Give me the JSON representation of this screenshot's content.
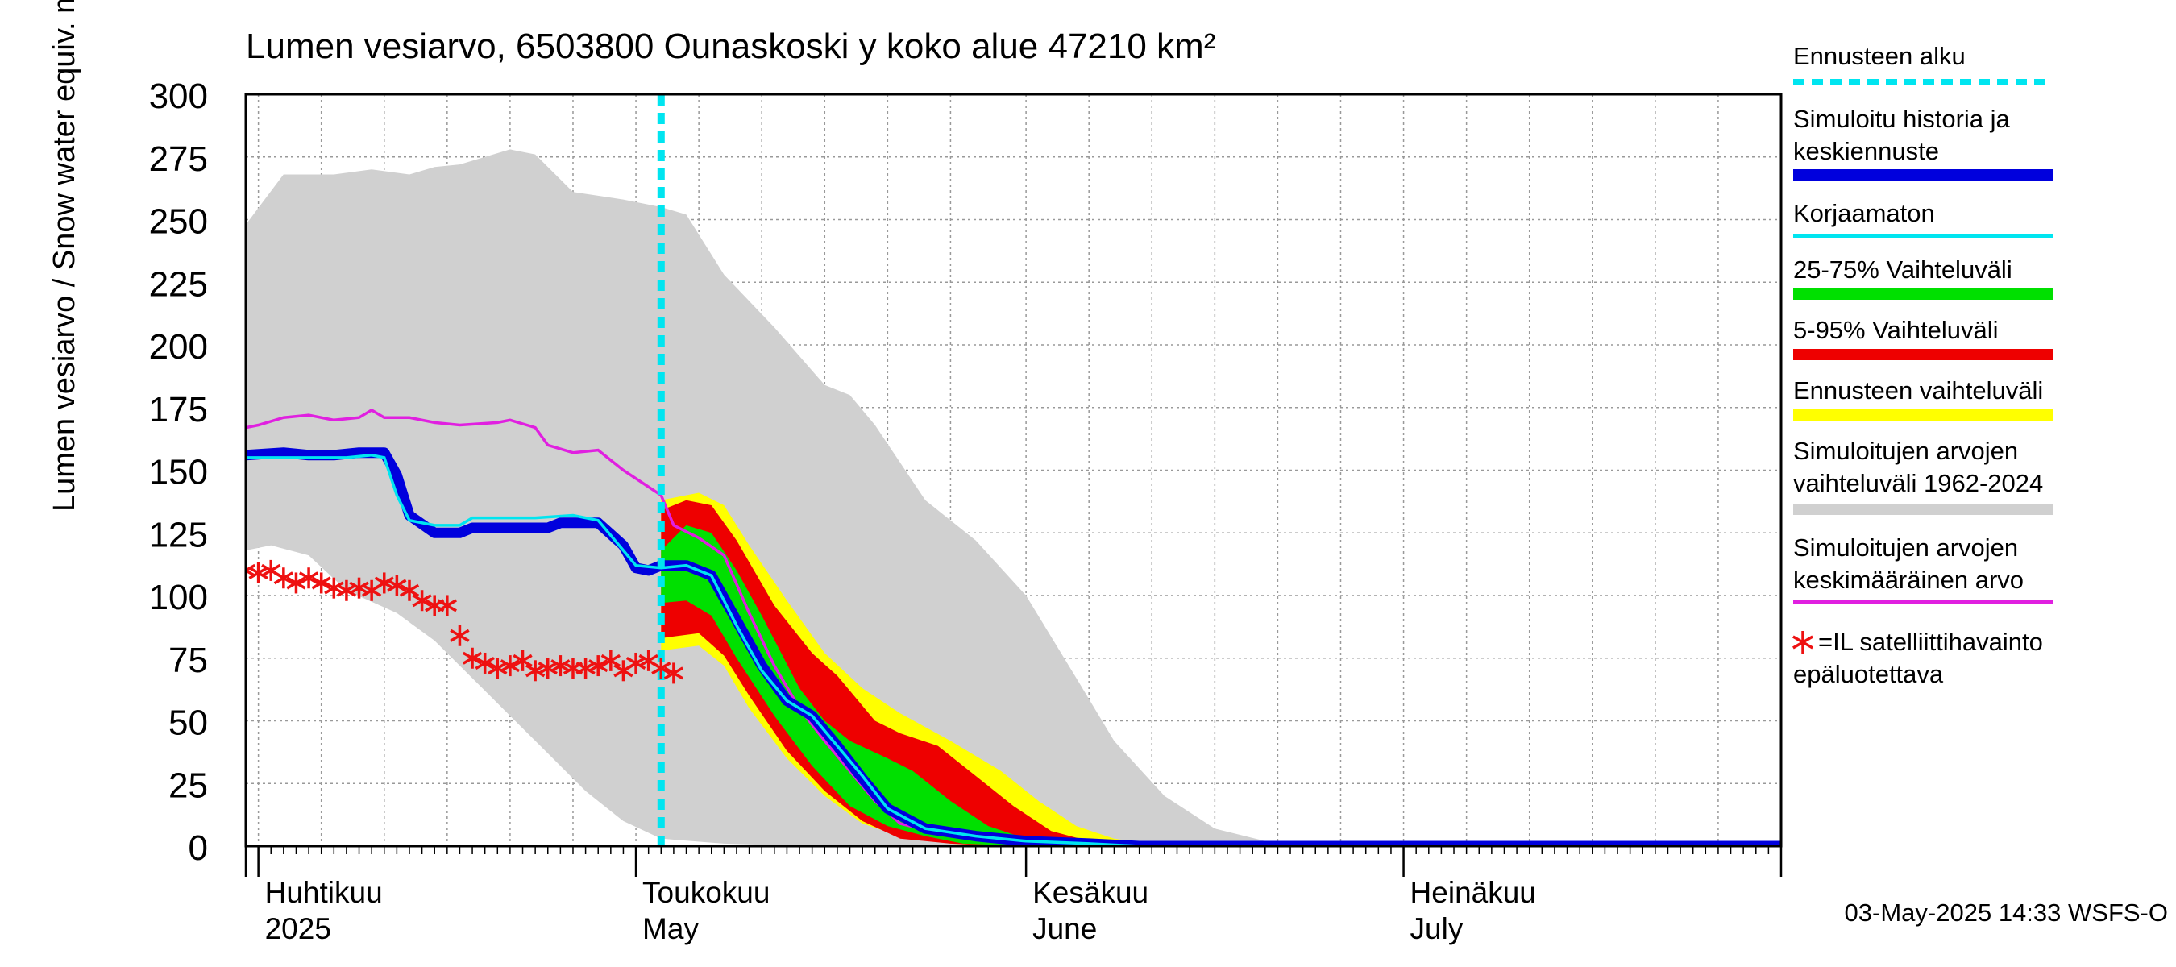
{
  "chart_data": {
    "type": "area",
    "title": "Lumen vesiarvo, 6503800 Ounaskoski y koko alue 47210 km²",
    "ylabel": "Lumen vesiarvo / Snow water equiv.    mm",
    "ylim": [
      0,
      300
    ],
    "yticks": [
      0,
      25,
      50,
      75,
      100,
      125,
      150,
      175,
      200,
      225,
      250,
      275,
      300
    ],
    "xlim": [
      "2025-03-31",
      "2025-07-31"
    ],
    "grid": true,
    "legend_placement": "right",
    "month_labels": [
      {
        "date": "2025-04-01",
        "fi": "Huhtikuu",
        "en": "2025"
      },
      {
        "date": "2025-05-01",
        "fi": "Toukokuu",
        "en": "May"
      },
      {
        "date": "2025-06-01",
        "fi": "Kesäkuu",
        "en": "June"
      },
      {
        "date": "2025-07-01",
        "fi": "Heinäkuu",
        "en": "July"
      }
    ],
    "forecast_start": "2025-05-03",
    "timestamp": "03-May-2025 14:33 WSFS-O",
    "legend": [
      {
        "key": "forecast_start",
        "label": "Ennusteen alku",
        "color": "#00e5f0",
        "style": "dashed"
      },
      {
        "key": "simulated",
        "label": "Simuloitu historia ja keskiennuste",
        "color": "#0000dd",
        "style": "thick"
      },
      {
        "key": "uncorrected",
        "label": "Korjaamaton",
        "color": "#00e5f0",
        "style": "line"
      },
      {
        "key": "band_25_75",
        "label": "25-75% Vaihteluväli",
        "color": "#00e000",
        "style": "thick"
      },
      {
        "key": "band_5_95",
        "label": "5-95% Vaihteluväli",
        "color": "#ee0000",
        "style": "thick"
      },
      {
        "key": "forecast_range",
        "label": "Ennusteen vaihteluväli",
        "color": "#ffff00",
        "style": "thick"
      },
      {
        "key": "hist_range",
        "label": "Simuloitujen arvojen vaihteluväli 1962-2024",
        "color": "#d0d0d0",
        "style": "thick"
      },
      {
        "key": "hist_mean",
        "label": "Simuloitujen arvojen keskimääräinen arvo",
        "color": "#e020e0",
        "style": "line"
      },
      {
        "key": "satellite",
        "label": "=IL satelliittihavainto epäluotettava",
        "color": "#ee1111",
        "style": "marker"
      }
    ],
    "series": {
      "hist_range": {
        "upper": [
          [
            "2025-03-31",
            248
          ],
          [
            "2025-04-03",
            268
          ],
          [
            "2025-04-07",
            268
          ],
          [
            "2025-04-10",
            270
          ],
          [
            "2025-04-13",
            268
          ],
          [
            "2025-04-15",
            271
          ],
          [
            "2025-04-17",
            272
          ],
          [
            "2025-04-19",
            275
          ],
          [
            "2025-04-21",
            278
          ],
          [
            "2025-04-23",
            276
          ],
          [
            "2025-04-26",
            261
          ],
          [
            "2025-04-30",
            258
          ],
          [
            "2025-05-03",
            255
          ],
          [
            "2025-05-05",
            252
          ],
          [
            "2025-05-08",
            228
          ],
          [
            "2025-05-12",
            207
          ],
          [
            "2025-05-16",
            184
          ],
          [
            "2025-05-18",
            180
          ],
          [
            "2025-05-20",
            168
          ],
          [
            "2025-05-24",
            138
          ],
          [
            "2025-05-28",
            122
          ],
          [
            "2025-06-01",
            100
          ],
          [
            "2025-06-05",
            67
          ],
          [
            "2025-06-08",
            42
          ],
          [
            "2025-06-12",
            20
          ],
          [
            "2025-06-16",
            7
          ],
          [
            "2025-06-20",
            2
          ],
          [
            "2025-06-24",
            0
          ],
          [
            "2025-07-31",
            0
          ]
        ],
        "lower": [
          [
            "2025-03-31",
            118
          ],
          [
            "2025-04-02",
            120
          ],
          [
            "2025-04-05",
            116
          ],
          [
            "2025-04-08",
            102
          ],
          [
            "2025-04-12",
            93
          ],
          [
            "2025-04-15",
            82
          ],
          [
            "2025-04-18",
            67
          ],
          [
            "2025-04-21",
            52
          ],
          [
            "2025-04-24",
            37
          ],
          [
            "2025-04-27",
            22
          ],
          [
            "2025-04-30",
            10
          ],
          [
            "2025-05-03",
            3
          ],
          [
            "2025-05-08",
            1
          ],
          [
            "2025-05-15",
            0
          ],
          [
            "2025-07-31",
            0
          ]
        ]
      },
      "forecast_range": {
        "upper": [
          [
            "2025-05-03",
            138
          ],
          [
            "2025-05-06",
            141
          ],
          [
            "2025-05-08",
            136
          ],
          [
            "2025-05-10",
            120
          ],
          [
            "2025-05-13",
            98
          ],
          [
            "2025-05-16",
            77
          ],
          [
            "2025-05-19",
            63
          ],
          [
            "2025-05-22",
            53
          ],
          [
            "2025-05-26",
            42
          ],
          [
            "2025-05-30",
            30
          ],
          [
            "2025-06-02",
            18
          ],
          [
            "2025-06-05",
            8
          ],
          [
            "2025-06-08",
            3
          ],
          [
            "2025-06-12",
            0
          ],
          [
            "2025-07-31",
            0
          ]
        ],
        "lower": [
          [
            "2025-05-03",
            78
          ],
          [
            "2025-05-06",
            80
          ],
          [
            "2025-05-08",
            72
          ],
          [
            "2025-05-10",
            55
          ],
          [
            "2025-05-13",
            35
          ],
          [
            "2025-05-16",
            20
          ],
          [
            "2025-05-19",
            9
          ],
          [
            "2025-05-22",
            4
          ],
          [
            "2025-05-26",
            1
          ],
          [
            "2025-05-30",
            0
          ],
          [
            "2025-07-31",
            0
          ]
        ]
      },
      "band_5_95": {
        "upper": [
          [
            "2025-05-03",
            134
          ],
          [
            "2025-05-05",
            138
          ],
          [
            "2025-05-07",
            136
          ],
          [
            "2025-05-09",
            122
          ],
          [
            "2025-05-12",
            96
          ],
          [
            "2025-05-15",
            77
          ],
          [
            "2025-05-17",
            68
          ],
          [
            "2025-05-20",
            50
          ],
          [
            "2025-05-22",
            45
          ],
          [
            "2025-05-25",
            40
          ],
          [
            "2025-05-28",
            28
          ],
          [
            "2025-05-31",
            16
          ],
          [
            "2025-06-03",
            6
          ],
          [
            "2025-06-06",
            2
          ],
          [
            "2025-06-09",
            0
          ],
          [
            "2025-07-31",
            0
          ]
        ],
        "lower": [
          [
            "2025-05-03",
            83
          ],
          [
            "2025-05-06",
            85
          ],
          [
            "2025-05-08",
            76
          ],
          [
            "2025-05-10",
            60
          ],
          [
            "2025-05-13",
            38
          ],
          [
            "2025-05-16",
            22
          ],
          [
            "2025-05-19",
            10
          ],
          [
            "2025-05-22",
            3
          ],
          [
            "2025-05-26",
            1
          ],
          [
            "2025-05-30",
            0
          ],
          [
            "2025-07-31",
            0
          ]
        ]
      },
      "band_25_75": {
        "upper": [
          [
            "2025-05-03",
            118
          ],
          [
            "2025-05-05",
            128
          ],
          [
            "2025-05-07",
            125
          ],
          [
            "2025-05-09",
            110
          ],
          [
            "2025-05-11",
            92
          ],
          [
            "2025-05-14",
            63
          ],
          [
            "2025-05-16",
            50
          ],
          [
            "2025-05-18",
            42
          ],
          [
            "2025-05-21",
            35
          ],
          [
            "2025-05-23",
            30
          ],
          [
            "2025-05-26",
            18
          ],
          [
            "2025-05-29",
            8
          ],
          [
            "2025-06-01",
            3
          ],
          [
            "2025-06-04",
            1
          ],
          [
            "2025-06-07",
            0
          ],
          [
            "2025-07-31",
            0
          ]
        ],
        "lower": [
          [
            "2025-05-03",
            97
          ],
          [
            "2025-05-05",
            98
          ],
          [
            "2025-05-07",
            92
          ],
          [
            "2025-05-09",
            75
          ],
          [
            "2025-05-12",
            52
          ],
          [
            "2025-05-15",
            32
          ],
          [
            "2025-05-18",
            16
          ],
          [
            "2025-05-21",
            8
          ],
          [
            "2025-05-24",
            4
          ],
          [
            "2025-05-27",
            1
          ],
          [
            "2025-06-01",
            0
          ],
          [
            "2025-07-31",
            0
          ]
        ]
      },
      "uncorrected": [
        [
          "2025-03-31",
          155
        ],
        [
          "2025-04-08",
          155
        ],
        [
          "2025-04-10",
          156
        ],
        [
          "2025-04-11",
          155
        ],
        [
          "2025-04-12",
          140
        ],
        [
          "2025-04-13",
          130
        ],
        [
          "2025-04-15",
          128
        ],
        [
          "2025-04-17",
          128
        ],
        [
          "2025-04-18",
          131
        ],
        [
          "2025-04-20",
          131
        ],
        [
          "2025-04-23",
          131
        ],
        [
          "2025-04-26",
          132
        ],
        [
          "2025-04-28",
          130
        ],
        [
          "2025-05-01",
          112
        ],
        [
          "2025-05-03",
          111
        ],
        [
          "2025-05-05",
          112
        ],
        [
          "2025-05-07",
          108
        ],
        [
          "2025-05-09",
          88
        ],
        [
          "2025-05-11",
          70
        ],
        [
          "2025-05-13",
          58
        ],
        [
          "2025-05-15",
          52
        ],
        [
          "2025-05-17",
          40
        ],
        [
          "2025-05-19",
          28
        ],
        [
          "2025-05-21",
          15
        ],
        [
          "2025-05-24",
          7
        ],
        [
          "2025-05-28",
          4
        ],
        [
          "2025-06-01",
          2
        ],
        [
          "2025-06-06",
          1
        ],
        [
          "2025-06-10",
          0
        ],
        [
          "2025-07-31",
          0
        ]
      ],
      "simulated": [
        [
          "2025-03-31",
          156
        ],
        [
          "2025-04-03",
          157
        ],
        [
          "2025-04-05",
          156
        ],
        [
          "2025-04-07",
          156
        ],
        [
          "2025-04-09",
          157
        ],
        [
          "2025-04-11",
          157
        ],
        [
          "2025-04-12",
          148
        ],
        [
          "2025-04-13",
          132
        ],
        [
          "2025-04-15",
          125
        ],
        [
          "2025-04-17",
          125
        ],
        [
          "2025-04-18",
          127
        ],
        [
          "2025-04-20",
          127
        ],
        [
          "2025-04-24",
          127
        ],
        [
          "2025-04-25",
          129
        ],
        [
          "2025-04-28",
          129
        ],
        [
          "2025-04-30",
          120
        ],
        [
          "2025-05-01",
          111
        ],
        [
          "2025-05-02",
          110
        ],
        [
          "2025-05-03",
          112
        ],
        [
          "2025-05-05",
          112
        ],
        [
          "2025-05-07",
          108
        ],
        [
          "2025-05-09",
          90
        ],
        [
          "2025-05-11",
          72
        ],
        [
          "2025-05-13",
          58
        ],
        [
          "2025-05-15",
          52
        ],
        [
          "2025-05-17",
          40
        ],
        [
          "2025-05-19",
          27
        ],
        [
          "2025-05-21",
          15
        ],
        [
          "2025-05-24",
          7
        ],
        [
          "2025-05-28",
          4
        ],
        [
          "2025-06-01",
          2
        ],
        [
          "2025-06-06",
          1
        ],
        [
          "2025-06-10",
          0
        ],
        [
          "2025-07-31",
          0
        ]
      ],
      "hist_mean": [
        [
          "2025-03-31",
          167
        ],
        [
          "2025-04-01",
          168
        ],
        [
          "2025-04-03",
          171
        ],
        [
          "2025-04-05",
          172
        ],
        [
          "2025-04-07",
          170
        ],
        [
          "2025-04-09",
          171
        ],
        [
          "2025-04-10",
          174
        ],
        [
          "2025-04-11",
          171
        ],
        [
          "2025-04-13",
          171
        ],
        [
          "2025-04-15",
          169
        ],
        [
          "2025-04-17",
          168
        ],
        [
          "2025-04-20",
          169
        ],
        [
          "2025-04-21",
          170
        ],
        [
          "2025-04-23",
          167
        ],
        [
          "2025-04-24",
          160
        ],
        [
          "2025-04-26",
          157
        ],
        [
          "2025-04-28",
          158
        ],
        [
          "2025-04-30",
          150
        ],
        [
          "2025-05-03",
          140
        ],
        [
          "2025-05-04",
          128
        ],
        [
          "2025-05-06",
          123
        ],
        [
          "2025-05-08",
          116
        ],
        [
          "2025-05-10",
          93
        ],
        [
          "2025-05-12",
          72
        ],
        [
          "2025-05-14",
          55
        ],
        [
          "2025-05-16",
          42
        ],
        [
          "2025-05-18",
          30
        ],
        [
          "2025-05-20",
          18
        ],
        [
          "2025-05-22",
          9
        ],
        [
          "2025-05-26",
          4
        ],
        [
          "2025-06-01",
          1
        ],
        [
          "2025-06-06",
          0
        ],
        [
          "2025-07-31",
          0
        ]
      ],
      "satellite": [
        [
          "2025-03-31",
          110
        ],
        [
          "2025-04-01",
          109
        ],
        [
          "2025-04-02",
          110
        ],
        [
          "2025-04-03",
          107
        ],
        [
          "2025-04-04",
          105
        ],
        [
          "2025-04-05",
          107
        ],
        [
          "2025-04-06",
          105
        ],
        [
          "2025-04-07",
          103
        ],
        [
          "2025-04-08",
          102
        ],
        [
          "2025-04-09",
          103
        ],
        [
          "2025-04-10",
          102
        ],
        [
          "2025-04-11",
          105
        ],
        [
          "2025-04-12",
          104
        ],
        [
          "2025-04-13",
          102
        ],
        [
          "2025-04-14",
          98
        ],
        [
          "2025-04-15",
          96
        ],
        [
          "2025-04-16",
          96
        ],
        [
          "2025-04-17",
          84
        ],
        [
          "2025-04-18",
          75
        ],
        [
          "2025-04-19",
          73
        ],
        [
          "2025-04-20",
          71
        ],
        [
          "2025-04-21",
          72
        ],
        [
          "2025-04-22",
          74
        ],
        [
          "2025-04-23",
          70
        ],
        [
          "2025-04-24",
          71
        ],
        [
          "2025-04-25",
          72
        ],
        [
          "2025-04-26",
          71
        ],
        [
          "2025-04-27",
          71
        ],
        [
          "2025-04-28",
          72
        ],
        [
          "2025-04-29",
          74
        ],
        [
          "2025-04-30",
          70
        ],
        [
          "2025-05-01",
          73
        ],
        [
          "2025-05-02",
          74
        ],
        [
          "2025-05-03",
          71
        ],
        [
          "2025-05-04",
          69
        ]
      ]
    }
  }
}
